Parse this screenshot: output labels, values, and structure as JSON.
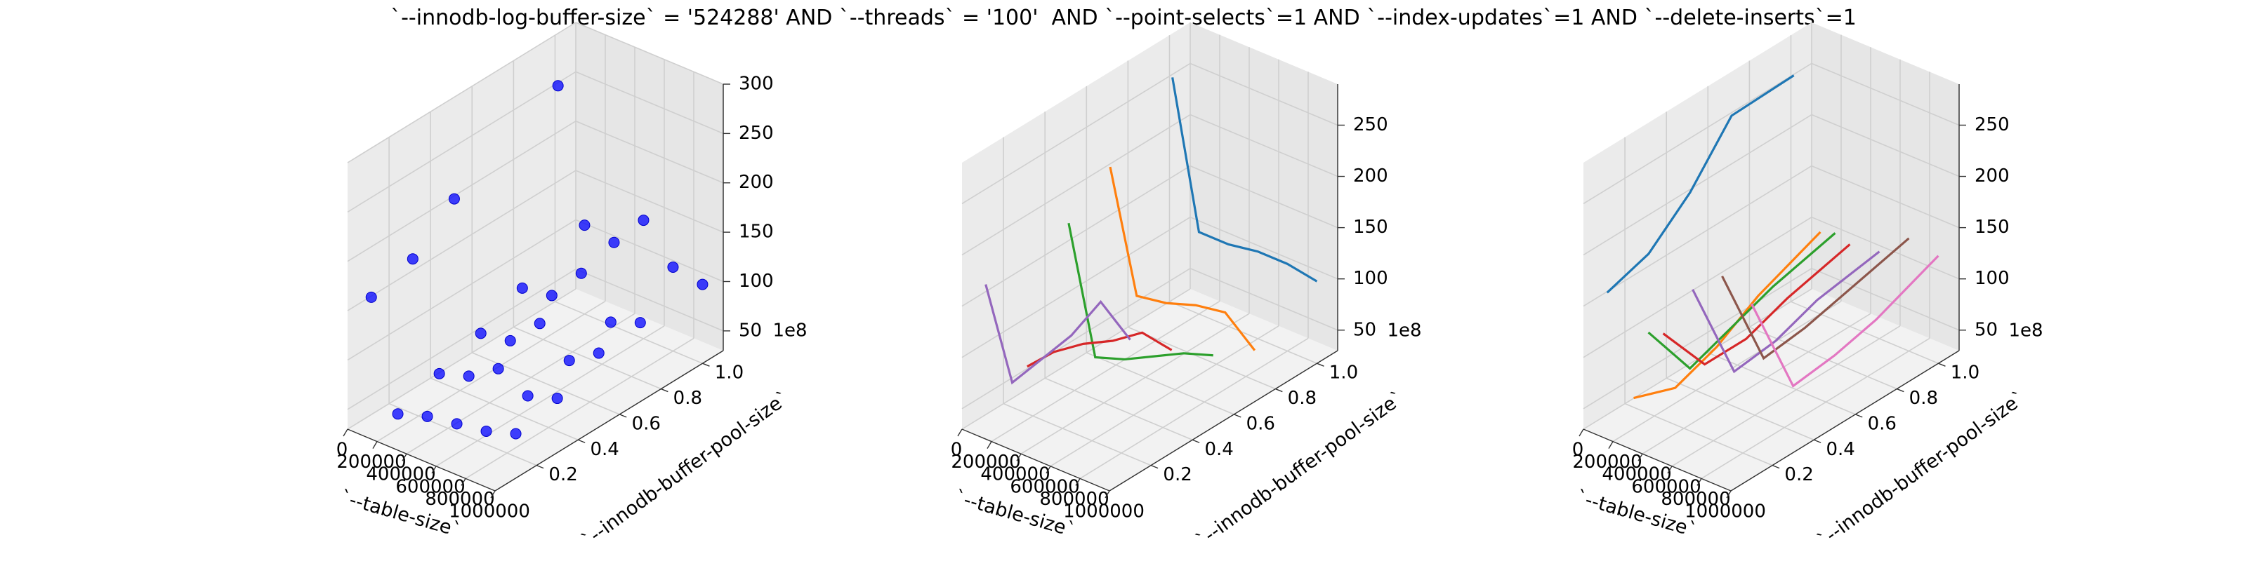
{
  "figure_title": "`--innodb-log-buffer-size` = '524288' AND `--threads` = '100'  AND `--point-selects`=1 AND `--index-updates`=1 AND `--delete-inserts`=1",
  "chart_data": [
    {
      "type": "scatter",
      "xlabel": "`--table-size`",
      "ylabel": "`--innodb-buffer-pool-size`",
      "ylabel_scale_suffix": "1e8",
      "xlim": [
        0,
        1000000
      ],
      "ylim": [
        0,
        1.1
      ],
      "zlim": [
        30,
        300
      ],
      "xticks": [
        "0",
        "200000",
        "400000",
        "600000",
        "800000",
        "1000000"
      ],
      "xtick_values": [
        0,
        200000,
        400000,
        600000,
        800000,
        1000000
      ],
      "yticks": [
        "0.2",
        "0.4",
        "0.6",
        "0.8",
        "1.0"
      ],
      "ytick_values": [
        0.2,
        0.4,
        0.6,
        0.8,
        1.0
      ],
      "zticks": [
        "50",
        "100",
        "150",
        "200",
        "250",
        "300"
      ],
      "ztick_values": [
        50,
        100,
        150,
        200,
        250,
        300
      ],
      "color": "#0000ff",
      "points": [
        {
          "x": 20000,
          "y": 0.1,
          "z": 152
        },
        {
          "x": 20000,
          "y": 0.3,
          "z": 165
        },
        {
          "x": 20000,
          "y": 0.5,
          "z": 200
        },
        {
          "x": 20000,
          "y": 1.0,
          "z": 250
        },
        {
          "x": 200000,
          "y": 0.1,
          "z": 45
        },
        {
          "x": 200000,
          "y": 0.3,
          "z": 60
        },
        {
          "x": 200000,
          "y": 0.5,
          "z": 75
        },
        {
          "x": 200000,
          "y": 0.7,
          "z": 95
        },
        {
          "x": 200000,
          "y": 1.0,
          "z": 120
        },
        {
          "x": 400000,
          "y": 0.1,
          "z": 55
        },
        {
          "x": 400000,
          "y": 0.3,
          "z": 70
        },
        {
          "x": 400000,
          "y": 0.5,
          "z": 80
        },
        {
          "x": 400000,
          "y": 0.7,
          "z": 100
        },
        {
          "x": 400000,
          "y": 1.0,
          "z": 115
        },
        {
          "x": 600000,
          "y": 0.1,
          "z": 60
        },
        {
          "x": 600000,
          "y": 0.3,
          "z": 90
        },
        {
          "x": 600000,
          "y": 0.5,
          "z": 110
        },
        {
          "x": 600000,
          "y": 0.7,
          "z": 135
        },
        {
          "x": 600000,
          "y": 1.0,
          "z": 150
        },
        {
          "x": 800000,
          "y": 0.1,
          "z": 65
        },
        {
          "x": 800000,
          "y": 0.3,
          "z": 75
        },
        {
          "x": 800000,
          "y": 0.5,
          "z": 85
        },
        {
          "x": 800000,
          "y": 0.7,
          "z": 98
        },
        {
          "x": 800000,
          "y": 1.0,
          "z": 115
        },
        {
          "x": 1000000,
          "y": 0.1,
          "z": 75
        },
        {
          "x": 1000000,
          "y": 0.3,
          "z": 85
        },
        {
          "x": 1000000,
          "y": 0.5,
          "z": 105
        },
        {
          "x": 1000000,
          "y": 0.7,
          "z": 110
        },
        {
          "x": 1000000,
          "y": 1.0,
          "z": 110
        }
      ]
    },
    {
      "type": "line",
      "xlabel": "`--table-size`",
      "ylabel": "`--innodb-buffer-pool-size`",
      "ylabel_scale_suffix": "1e8",
      "xlim": [
        0,
        1000000
      ],
      "ylim": [
        0,
        1.1
      ],
      "zlim": [
        30,
        290
      ],
      "xticks": [
        "0",
        "200000",
        "400000",
        "600000",
        "800000",
        "1000000"
      ],
      "xtick_values": [
        0,
        200000,
        400000,
        600000,
        800000,
        1000000
      ],
      "yticks": [
        "0.2",
        "0.4",
        "0.6",
        "0.8",
        "1.0"
      ],
      "ytick_values": [
        0.2,
        0.4,
        0.6,
        0.8,
        1.0
      ],
      "zticks": [
        "50",
        "100",
        "150",
        "200",
        "250"
      ],
      "ztick_values": [
        50,
        100,
        150,
        200,
        250
      ],
      "x": [
        20000,
        200000,
        400000,
        600000,
        800000,
        1000000
      ],
      "series": [
        {
          "color": "#1f77b4",
          "y": 1.0,
          "values": [
            250,
            110,
            110,
            115,
            115,
            110
          ]
        },
        {
          "color": "#ff7f0e",
          "y": 0.7,
          "values": [
            200,
            85,
            90,
            100,
            105,
            80
          ]
        },
        {
          "color": "#2ca02c",
          "y": 0.5,
          "values": [
            170,
            50,
            60,
            75,
            90,
            100
          ]
        },
        {
          "color": "#d62728",
          "y": 0.3,
          "values": [
            55,
            80,
            100,
            115,
            135,
            130
          ]
        },
        {
          "color": "#9467bd",
          "y": 0.1,
          "values": [
            160,
            75,
            110,
            145,
            190,
            165
          ]
        }
      ]
    },
    {
      "type": "line",
      "xlabel": "`--table-size`",
      "ylabel": "`--innodb-buffer-pool-size`",
      "ylabel_scale_suffix": "1e8",
      "xlim": [
        0,
        1000000
      ],
      "ylim": [
        0,
        1.1
      ],
      "zlim": [
        30,
        290
      ],
      "xticks": [
        "0",
        "200000",
        "400000",
        "600000",
        "800000",
        "1000000"
      ],
      "xtick_values": [
        0,
        200000,
        400000,
        600000,
        800000,
        1000000
      ],
      "yticks": [
        "0.2",
        "0.4",
        "0.6",
        "0.8",
        "1.0"
      ],
      "ytick_values": [
        0.2,
        0.4,
        0.6,
        0.8,
        1.0
      ],
      "zticks": [
        "50",
        "100",
        "150",
        "200",
        "250"
      ],
      "ztick_values": [
        50,
        100,
        150,
        200,
        250
      ],
      "y": [
        0.1,
        0.3,
        0.5,
        0.7,
        1.0
      ],
      "series": [
        {
          "color": "#1f77b4",
          "x": 20000,
          "values": [
            152,
            165,
            200,
            250,
            252
          ]
        },
        {
          "color": "#ff7f0e",
          "x": 200000,
          "values": [
            60,
            45,
            60,
            85,
            110
          ]
        },
        {
          "color": "#2ca02c",
          "x": 300000,
          "values": [
            130,
            70,
            85,
            100,
            115
          ]
        },
        {
          "color": "#d62728",
          "x": 400000,
          "values": [
            135,
            80,
            80,
            95,
            110
          ]
        },
        {
          "color": "#9467bd",
          "x": 600000,
          "values": [
            190,
            85,
            90,
            105,
            115
          ]
        },
        {
          "color": "#8c564b",
          "x": 800000,
          "values": [
            215,
            110,
            115,
            125,
            140
          ]
        },
        {
          "color": "#e377c2",
          "x": 1000000,
          "values": [
            200,
            95,
            100,
            110,
            135
          ]
        }
      ]
    }
  ]
}
